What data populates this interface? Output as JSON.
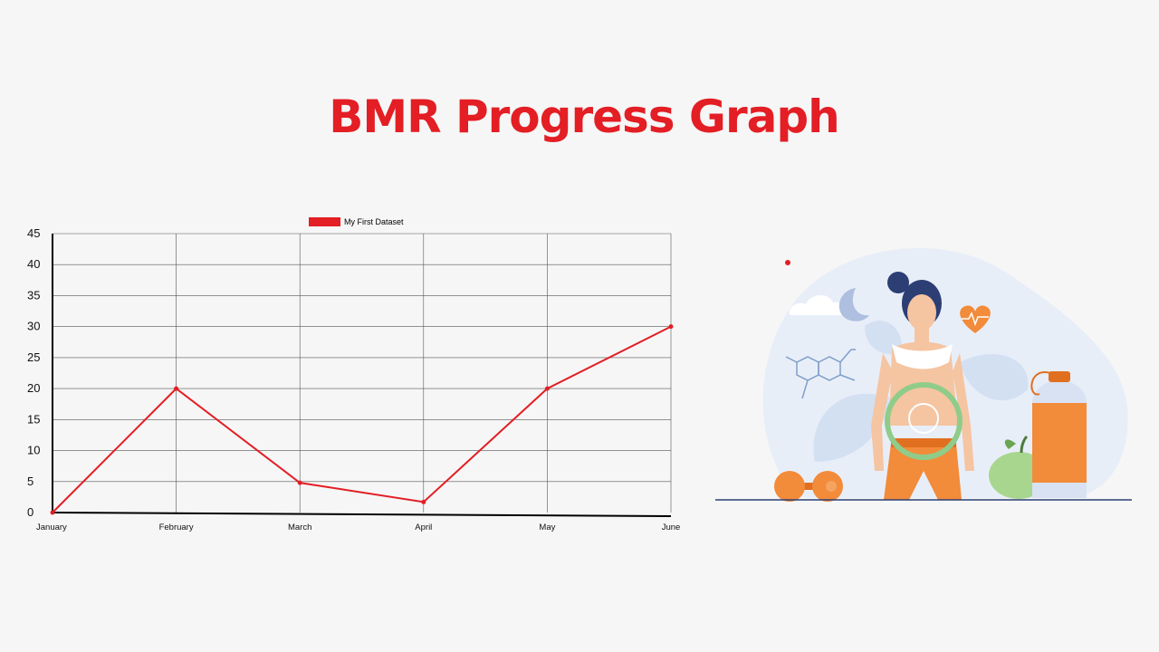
{
  "page": {
    "title": "BMR Progress Graph"
  },
  "colors": {
    "accent": "#e31e24",
    "grid": "#555555",
    "axis": "#000000",
    "text": "#111111"
  },
  "chart_data": {
    "type": "line",
    "title": "",
    "xlabel": "",
    "ylabel": "",
    "categories": [
      "January",
      "February",
      "March",
      "April",
      "May",
      "June"
    ],
    "series": [
      {
        "name": "My First Dataset",
        "color": "#e31e24",
        "values": [
          0,
          20,
          4.8,
          1.7,
          20,
          30
        ]
      }
    ],
    "ylim": [
      0,
      45
    ],
    "yticks": [
      0,
      5,
      10,
      15,
      20,
      25,
      30,
      35,
      40,
      45
    ],
    "grid": true,
    "legend": "top-center"
  },
  "illustration": {
    "subject": "woman-metabolism-illustration",
    "icons": [
      "heart-icon",
      "moon-icon",
      "cloud-icon",
      "molecule-icon",
      "dumbbell-icon",
      "apple-icon",
      "water-bottle-icon",
      "metabolism-cycle-icon"
    ]
  }
}
